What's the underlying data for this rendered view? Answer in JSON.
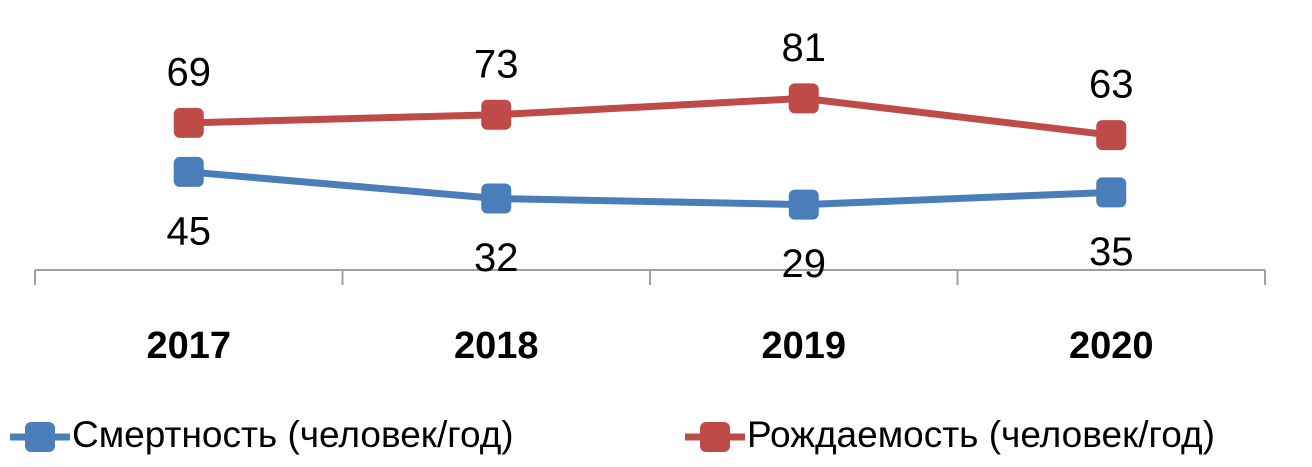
{
  "chart_data": {
    "type": "line",
    "categories": [
      "2017",
      "2018",
      "2019",
      "2020"
    ],
    "series": [
      {
        "name": "Смертность (человек/год)",
        "color": "#4a7ebb",
        "values": [
          45,
          32,
          29,
          35
        ],
        "label_side": "below"
      },
      {
        "name": "Рождаемость (человек/год)",
        "color": "#be4b48",
        "values": [
          69,
          73,
          81,
          63
        ],
        "label_side": "above"
      }
    ],
    "ylim": [
      -3,
      90
    ],
    "legend": "bottom"
  }
}
